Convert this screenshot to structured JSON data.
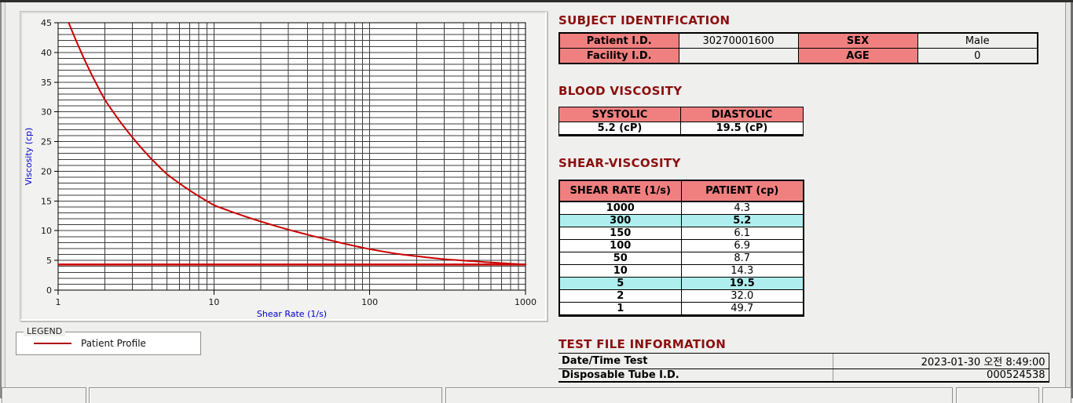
{
  "titles": {
    "subject": "SUBJECT IDENTIFICATION",
    "blood": "BLOOD VISCOSITY",
    "shear": "SHEAR-VISCOSITY",
    "test": "TEST FILE INFORMATION"
  },
  "subject_table": {
    "rows": [
      {
        "label1": "Patient I.D.",
        "value1": "30270001600",
        "label2": "SEX",
        "value2": "Male"
      },
      {
        "label1": "Facility I.D.",
        "value1": "",
        "label2": "AGE",
        "value2": "0"
      }
    ]
  },
  "blood_table": {
    "headers": [
      "SYSTOLIC",
      "DIASTOLIC"
    ],
    "values": [
      "5.2 (cP)",
      "19.5 (cP)"
    ]
  },
  "shear_table": {
    "headers": [
      "SHEAR RATE (1/s)",
      "PATIENT (cp)"
    ],
    "rows": [
      {
        "rate": "1000",
        "value": "4.3",
        "highlight": false
      },
      {
        "rate": "300",
        "value": "5.2",
        "highlight": true
      },
      {
        "rate": "150",
        "value": "6.1",
        "highlight": false
      },
      {
        "rate": "100",
        "value": "6.9",
        "highlight": false
      },
      {
        "rate": "50",
        "value": "8.7",
        "highlight": false
      },
      {
        "rate": "10",
        "value": "14.3",
        "highlight": false
      },
      {
        "rate": "5",
        "value": "19.5",
        "highlight": true
      },
      {
        "rate": "2",
        "value": "32.0",
        "highlight": false
      },
      {
        "rate": "1",
        "value": "49.7",
        "highlight": false
      }
    ]
  },
  "test_table": {
    "rows": [
      {
        "label": "Date/Time Test",
        "value": "2023-01-30   오전 8:49:00"
      },
      {
        "label": "Disposable Tube I.D.",
        "value": "000524538"
      }
    ]
  },
  "legend": {
    "group_label": "LEGEND",
    "series_label": "Patient Profile"
  },
  "chart_data": {
    "type": "line",
    "x_scale": "log",
    "x": [
      1,
      2,
      5,
      10,
      50,
      100,
      150,
      300,
      1000
    ],
    "series": [
      {
        "name": "Patient Profile",
        "values": [
          49.7,
          32.0,
          19.5,
          14.3,
          8.7,
          6.9,
          6.1,
          5.2,
          4.3
        ]
      }
    ],
    "reference_line_y": 4.3,
    "xlabel": "Shear Rate (1/s)",
    "ylabel": "Viscosity (cp)",
    "xlim": [
      1,
      1000
    ],
    "ylim": [
      0,
      45
    ],
    "y_major_step": 5,
    "y_minor_step": 1,
    "x_ticks": [
      1,
      10,
      100,
      1000
    ],
    "grid": true,
    "legend_position": "below-left",
    "line_color": "#cc0000"
  },
  "colors": {
    "section_title": "#8b0f0f",
    "table_header_pink": "#f08080",
    "row_highlight_cyan": "#afeeee",
    "curve_red": "#cc0000",
    "axis_title_blue": "#0000cc",
    "background": "#efefed"
  }
}
